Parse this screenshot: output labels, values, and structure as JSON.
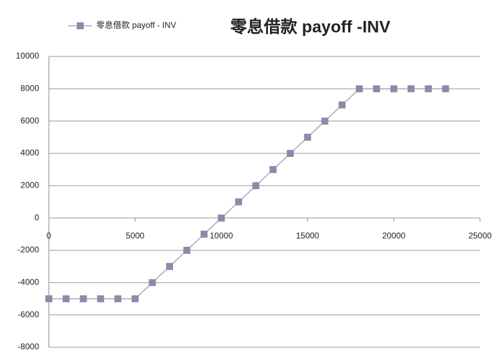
{
  "chart_data": {
    "type": "line",
    "title": "零息借款 payoff -INV",
    "x": [
      0,
      1000,
      2000,
      3000,
      4000,
      5000,
      6000,
      7000,
      8000,
      9000,
      10000,
      11000,
      12000,
      13000,
      14000,
      15000,
      16000,
      17000,
      18000,
      19000,
      20000,
      21000,
      22000,
      23000
    ],
    "series": [
      {
        "name": "零息借款 payoff - INV",
        "color": "#8f88aa",
        "values": [
          -5000,
          -5000,
          -5000,
          -5000,
          -5000,
          -5000,
          -4000,
          -3000,
          -2000,
          -1000,
          0,
          1000,
          2000,
          3000,
          4000,
          5000,
          6000,
          7000,
          8000,
          8000,
          8000,
          8000,
          8000,
          8000
        ]
      }
    ],
    "xlim": [
      0,
      25000
    ],
    "xticks": [
      0,
      5000,
      10000,
      15000,
      20000,
      25000
    ],
    "ylim": [
      -8000,
      10000
    ],
    "yticks": [
      -8000,
      -6000,
      -4000,
      -2000,
      0,
      2000,
      4000,
      6000,
      8000,
      10000
    ],
    "grid": true,
    "legend": "top-left"
  }
}
